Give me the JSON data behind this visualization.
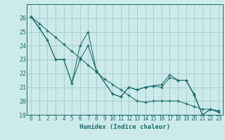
{
  "xlabel": "Humidex (Indice chaleur)",
  "bg_color": "#cceaea",
  "grid_color": "#aacece",
  "line_color": "#1a6b6b",
  "xlim": [
    -0.5,
    23.5
  ],
  "ylim": [
    19,
    27
  ],
  "xticks": [
    0,
    1,
    2,
    3,
    4,
    5,
    6,
    7,
    8,
    9,
    10,
    11,
    12,
    13,
    14,
    15,
    16,
    17,
    18,
    19,
    20,
    21,
    22,
    23
  ],
  "yticks": [
    19,
    20,
    21,
    22,
    23,
    24,
    25,
    26
  ],
  "lineA_x": [
    0,
    1,
    2,
    3,
    4,
    5,
    6,
    7,
    8,
    9,
    10,
    11,
    12,
    13,
    14,
    15,
    16,
    17,
    18,
    19,
    20,
    21,
    22,
    23
  ],
  "lineA_y": [
    26.1,
    25.6,
    25.1,
    24.6,
    24.1,
    23.6,
    23.1,
    22.6,
    22.1,
    21.6,
    21.2,
    20.8,
    20.4,
    20.0,
    19.9,
    20.0,
    20.0,
    20.0,
    20.0,
    19.8,
    19.6,
    19.4,
    19.4,
    19.3
  ],
  "lineB_x": [
    0,
    1,
    2,
    3,
    4,
    5,
    6,
    7,
    8,
    10,
    11,
    12,
    13,
    14,
    15,
    16,
    17,
    18,
    19,
    20,
    21,
    22,
    23
  ],
  "lineB_y": [
    26.1,
    25.3,
    24.4,
    23.0,
    23.0,
    21.3,
    24.0,
    25.0,
    22.2,
    20.5,
    20.3,
    21.0,
    20.8,
    21.0,
    21.1,
    21.2,
    21.9,
    21.5,
    21.5,
    20.4,
    19.0,
    19.4,
    19.2
  ],
  "lineC_x": [
    0,
    2,
    3,
    4,
    5,
    6,
    7,
    8,
    10,
    11,
    12,
    13,
    14,
    15,
    16,
    17,
    18,
    19,
    20,
    21,
    22,
    23
  ],
  "lineC_y": [
    26.1,
    24.4,
    23.0,
    23.0,
    21.3,
    23.0,
    24.0,
    22.2,
    20.5,
    20.3,
    21.0,
    20.8,
    21.0,
    21.1,
    21.0,
    21.7,
    21.5,
    21.5,
    20.5,
    19.0,
    19.4,
    19.2
  ]
}
